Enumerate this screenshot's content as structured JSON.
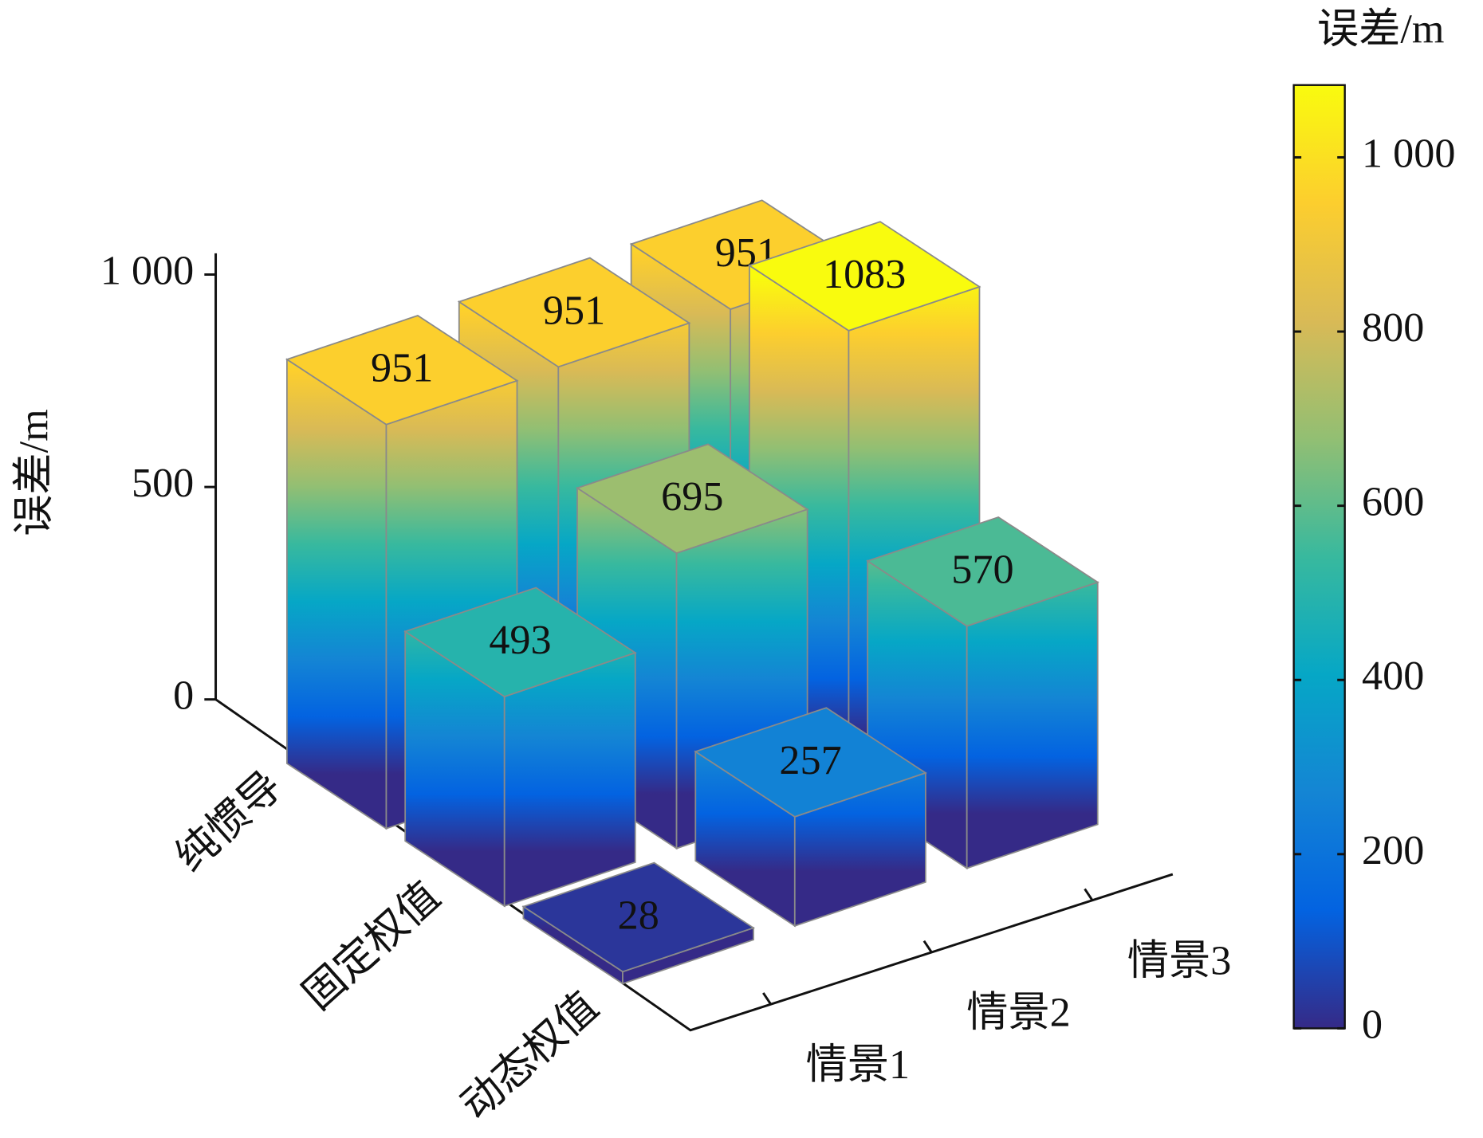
{
  "chart_data": {
    "type": "bar3d",
    "zlabel": "误差/m",
    "categories": [
      "情景1",
      "情景2",
      "情景3"
    ],
    "series": [
      {
        "name": "纯惯导",
        "values": [
          951,
          951,
          951
        ]
      },
      {
        "name": "固定权值",
        "values": [
          493,
          695,
          1083
        ]
      },
      {
        "name": "动态权值",
        "values": [
          28,
          257,
          570
        ]
      }
    ],
    "zlim": [
      0,
      1050
    ],
    "zticks": [
      0,
      500,
      {
        "value": 1000,
        "label": "1 000"
      }
    ],
    "colormap": [
      "#352a87",
      "#0363e1",
      "#1485d4",
      "#06a7c6",
      "#38b99e",
      "#92bf73",
      "#d9ba56",
      "#fcce2e",
      "#f9fb0e"
    ],
    "colorbar": {
      "label": "误差/m",
      "clim": [
        0,
        1083
      ],
      "ticks": [
        0,
        200,
        400,
        600,
        800,
        {
          "value": 1000,
          "label": "1 000"
        }
      ]
    }
  }
}
